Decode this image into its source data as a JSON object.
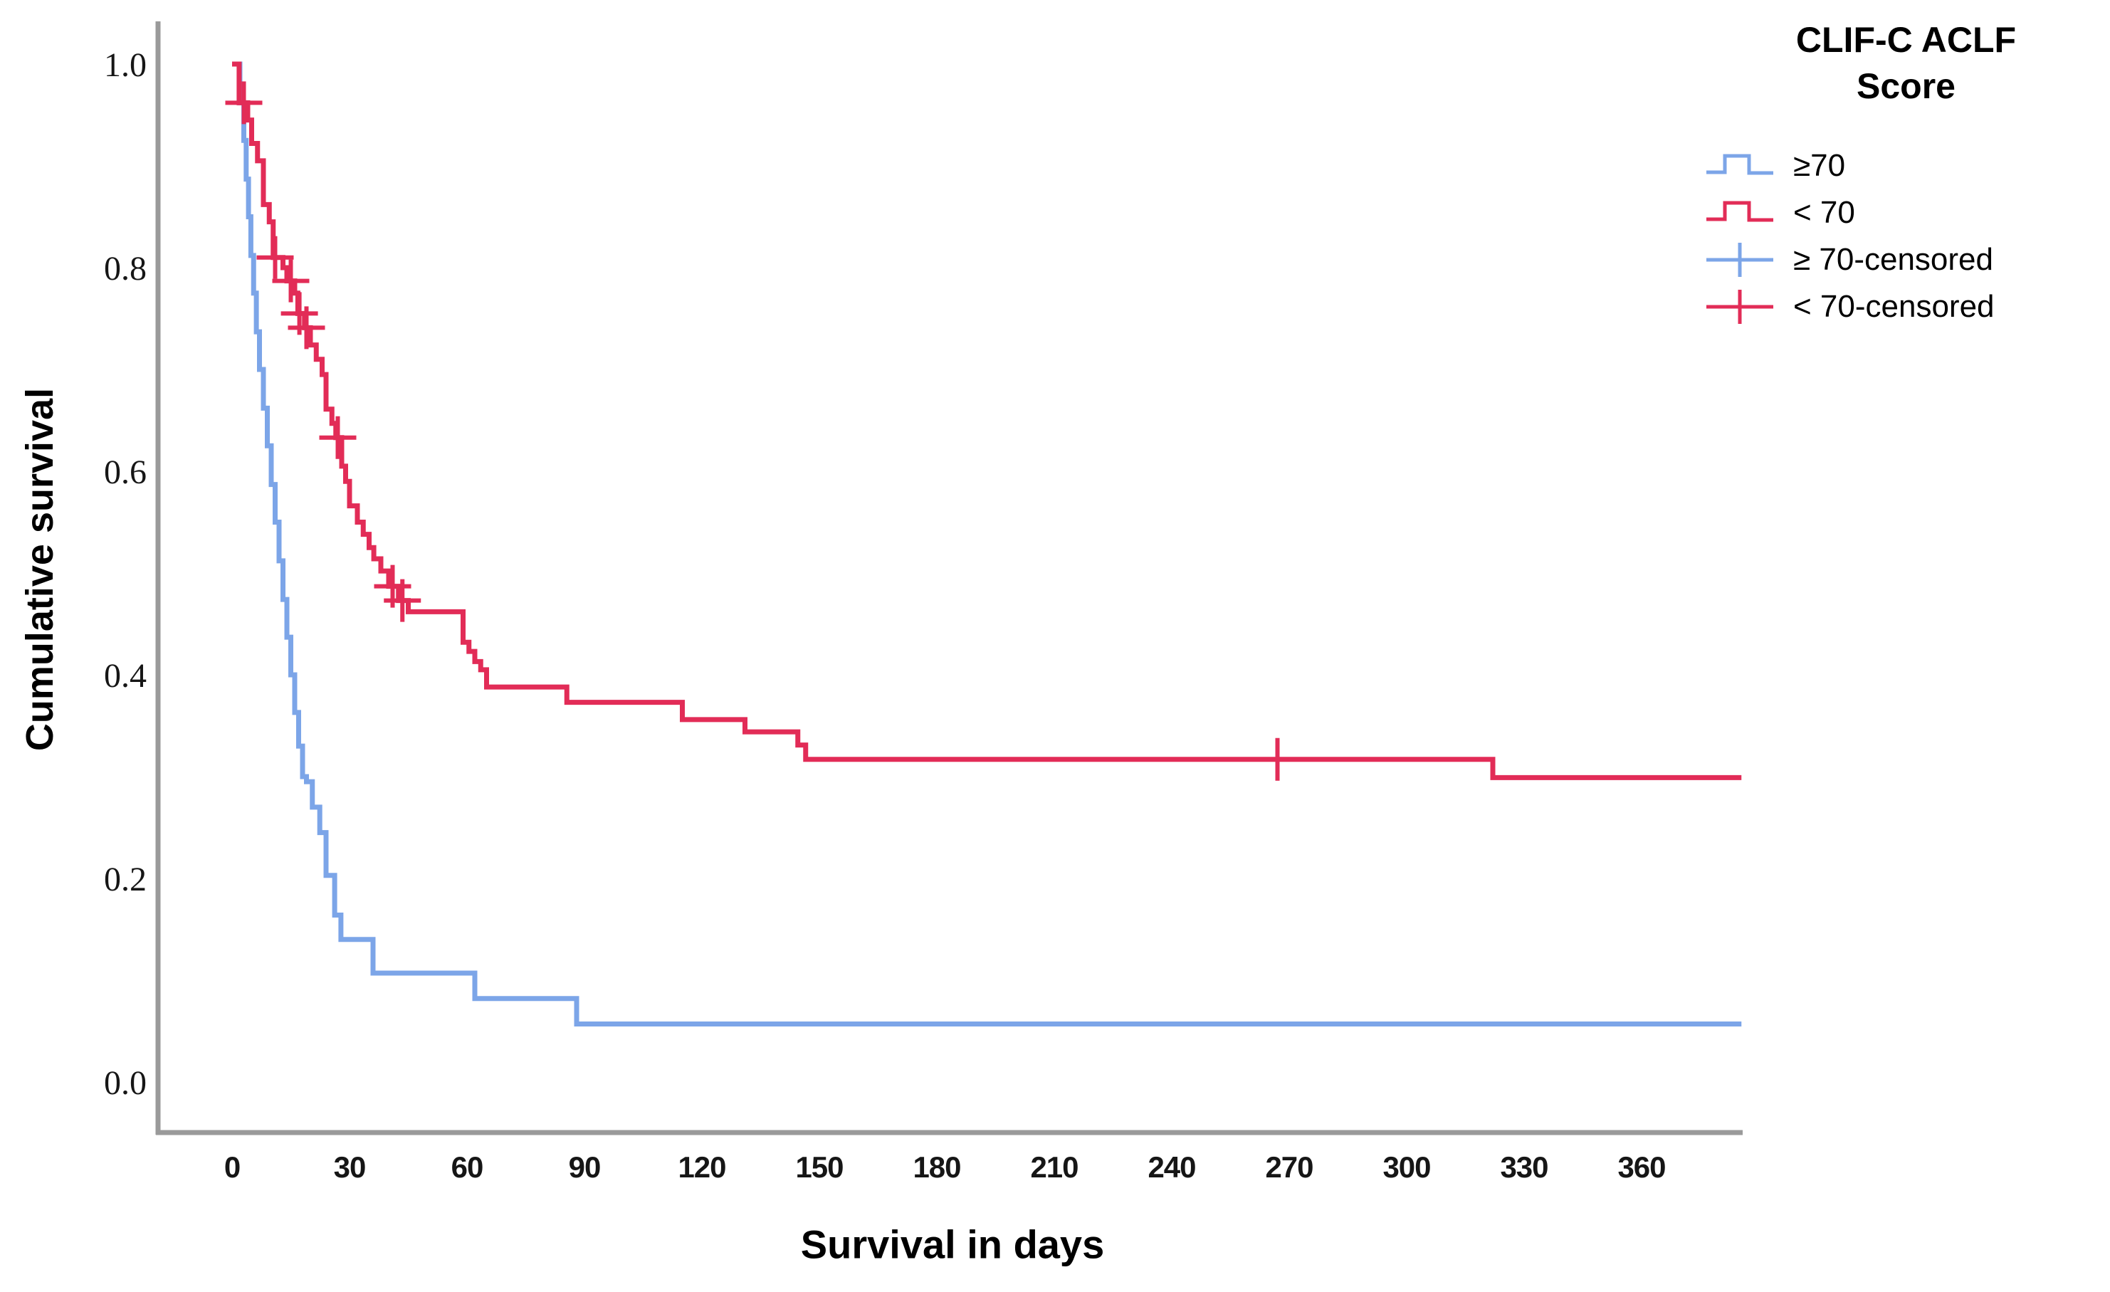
{
  "legend": {
    "title_line1": "CLIF-C ACLF",
    "title_line2": "Score",
    "items": [
      {
        "id": "ge70",
        "label": "≥70",
        "type": "step",
        "color": "#7CA5E8"
      },
      {
        "id": "lt70",
        "label": "< 70",
        "type": "step",
        "color": "#E22C57"
      },
      {
        "id": "ge70-censored",
        "label": "≥ 70-censored",
        "type": "censor",
        "color": "#7CA5E8"
      },
      {
        "id": "lt70-censored",
        "label": "< 70-censored",
        "type": "censor",
        "color": "#E22C57"
      }
    ]
  },
  "chart_data": {
    "type": "line",
    "subtype": "kaplan-meier-step",
    "title": "",
    "xlabel": "Survival in days",
    "ylabel": "Cumulative survival",
    "xlim": [
      -19,
      386
    ],
    "ylim": [
      -0.05,
      1.05
    ],
    "x_ticks": [
      0,
      30,
      60,
      90,
      120,
      150,
      180,
      210,
      240,
      270,
      300,
      330,
      360
    ],
    "y_ticks": [
      0.0,
      0.2,
      0.4,
      0.6,
      0.8,
      1.0
    ],
    "x_end": 385.5,
    "grid": false,
    "legend_position": "outside-top-right",
    "legend_title": "CLIF-C ACLF Score",
    "axis_color": "#9a9a9a",
    "series": [
      {
        "id": "ge70",
        "name": "≥70",
        "color": "#7CA5E8",
        "steps": [
          [
            0,
            1.0
          ],
          [
            2,
            0.962
          ],
          [
            3,
            0.925
          ],
          [
            3.6,
            0.887
          ],
          [
            4.2,
            0.85
          ],
          [
            4.8,
            0.812
          ],
          [
            5.5,
            0.775
          ],
          [
            6.2,
            0.737
          ],
          [
            7,
            0.7
          ],
          [
            8,
            0.662
          ],
          [
            9,
            0.625
          ],
          [
            10,
            0.587
          ],
          [
            11,
            0.55
          ],
          [
            12,
            0.512
          ],
          [
            13,
            0.474
          ],
          [
            14,
            0.437
          ],
          [
            15,
            0.4
          ],
          [
            16,
            0.363
          ],
          [
            17,
            0.33
          ],
          [
            18,
            0.3
          ],
          [
            19,
            0.295
          ],
          [
            20.5,
            0.27
          ],
          [
            22.4,
            0.245
          ],
          [
            24,
            0.203
          ],
          [
            26.2,
            0.164
          ],
          [
            27.8,
            0.14
          ],
          [
            36,
            0.107
          ],
          [
            62,
            0.082
          ],
          [
            88,
            0.057
          ]
        ],
        "censored": []
      },
      {
        "id": "lt70",
        "name": "< 70",
        "color": "#E22C57",
        "steps": [
          [
            0,
            1.0
          ],
          [
            1.8,
            0.962
          ],
          [
            4,
            0.945
          ],
          [
            5,
            0.922
          ],
          [
            6.5,
            0.905
          ],
          [
            8,
            0.862
          ],
          [
            9.5,
            0.845
          ],
          [
            10.5,
            0.81
          ],
          [
            13,
            0.8
          ],
          [
            14,
            0.787
          ],
          [
            16,
            0.775
          ],
          [
            16.8,
            0.755
          ],
          [
            18.5,
            0.741
          ],
          [
            20,
            0.724
          ],
          [
            21.5,
            0.71
          ],
          [
            23,
            0.695
          ],
          [
            24,
            0.661
          ],
          [
            25.5,
            0.647
          ],
          [
            26.5,
            0.633
          ],
          [
            28,
            0.605
          ],
          [
            29,
            0.59
          ],
          [
            30,
            0.566
          ],
          [
            32,
            0.55
          ],
          [
            33.5,
            0.538
          ],
          [
            35,
            0.525
          ],
          [
            36.2,
            0.514
          ],
          [
            38,
            0.502
          ],
          [
            40,
            0.487
          ],
          [
            42.5,
            0.473
          ],
          [
            45,
            0.462
          ],
          [
            59,
            0.432
          ],
          [
            60.5,
            0.423
          ],
          [
            62,
            0.413
          ],
          [
            63.5,
            0.405
          ],
          [
            65,
            0.388
          ],
          [
            85.5,
            0.373
          ],
          [
            115,
            0.356
          ],
          [
            131,
            0.344
          ],
          [
            144.5,
            0.331
          ],
          [
            146.5,
            0.317
          ],
          [
            322,
            0.299
          ]
        ],
        "censored": [
          [
            3,
            0.962
          ],
          [
            11,
            0.81
          ],
          [
            15,
            0.787
          ],
          [
            17.2,
            0.755
          ],
          [
            19,
            0.741
          ],
          [
            27,
            0.633
          ],
          [
            41,
            0.487
          ],
          [
            43.5,
            0.473
          ],
          [
            267,
            0.317
          ]
        ]
      }
    ]
  }
}
